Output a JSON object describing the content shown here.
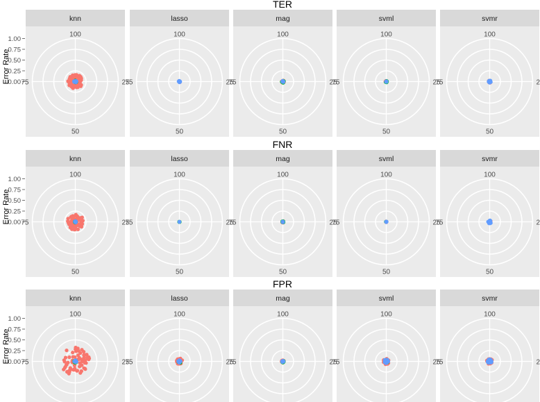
{
  "figure": {
    "panel_labels": [
      "knn",
      "lasso",
      "mag",
      "svml",
      "svmr"
    ],
    "ylabel": "Error Rate",
    "radial_ticks": [
      "0.00",
      "0.25",
      "0.50",
      "0.75",
      "1.00"
    ],
    "angular_labels": [
      "100",
      "25",
      "50",
      "75"
    ],
    "colors": {
      "panel_bg": "#ebebeb",
      "strip_bg": "#d9d9d9",
      "grid": "#ffffff",
      "series": [
        "#f8766d",
        "#00ba38",
        "#619cff"
      ]
    }
  },
  "chart_data": [
    {
      "type": "scatter",
      "coordinate_system": "polar",
      "title": "TER",
      "facets": [
        "knn",
        "lasso",
        "mag",
        "svml",
        "svmr"
      ],
      "ylabel": "Error Rate",
      "rlim": [
        0,
        1
      ],
      "angular_ticks": [
        "100",
        "25",
        "50",
        "75"
      ],
      "grid": true,
      "legend": "none",
      "spread": {
        "knn": [
          0.17,
          0.03,
          0.03
        ],
        "lasso": [
          0.02,
          0.01,
          0.02
        ],
        "mag": [
          0.03,
          0.03,
          0.02
        ],
        "svml": [
          0.02,
          0.02,
          0.01
        ],
        "svmr": [
          0.03,
          0.02,
          0.03
        ]
      }
    },
    {
      "type": "scatter",
      "coordinate_system": "polar",
      "title": "FNR",
      "facets": [
        "knn",
        "lasso",
        "mag",
        "svml",
        "svmr"
      ],
      "ylabel": "Error Rate",
      "rlim": [
        0,
        1
      ],
      "angular_ticks": [
        "100",
        "25",
        "50",
        "75"
      ],
      "grid": true,
      "legend": "none",
      "spread": {
        "knn": [
          0.19,
          0.02,
          0.02
        ],
        "lasso": [
          0.0,
          0.01,
          0.0
        ],
        "mag": [
          0.02,
          0.02,
          0.01
        ],
        "svml": [
          0.01,
          0.01,
          0.01
        ],
        "svmr": [
          0.03,
          0.01,
          0.04
        ]
      }
    },
    {
      "type": "scatter",
      "coordinate_system": "polar",
      "title": "FPR",
      "facets": [
        "knn",
        "lasso",
        "mag",
        "svml",
        "svmr"
      ],
      "ylabel": "Error Rate",
      "rlim": [
        0,
        1
      ],
      "angular_ticks": [
        "100",
        "25",
        "50",
        "75"
      ],
      "grid": true,
      "legend": "none",
      "spread": {
        "knn": [
          0.33,
          0.03,
          0.03
        ],
        "lasso": [
          0.07,
          0.04,
          0.03
        ],
        "mag": [
          0.03,
          0.03,
          0.02
        ],
        "svml": [
          0.07,
          0.04,
          0.05
        ],
        "svmr": [
          0.07,
          0.04,
          0.05
        ]
      }
    }
  ]
}
